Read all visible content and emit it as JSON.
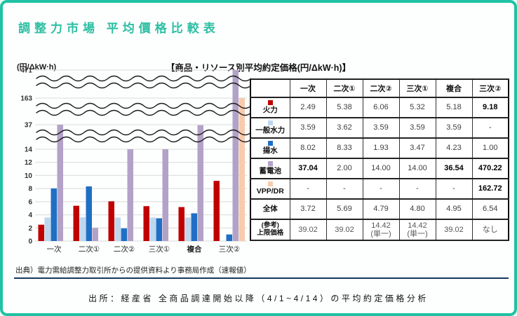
{
  "title": "調整力市場 平均價格比較表",
  "unit_label": "(円/ΔkW·h)",
  "chart_header": "【商品・リソース別平均約定価格(円/ΔkW·h)】",
  "source_note": "出典）電力需給調整力取引所からの提供資料より事務局作成（速報値）",
  "caption": "出所：経産省 全商品調達開始以降（4/1~4/14）の平均約定価格分析",
  "accent_color": "#1fc3a4",
  "chart_data": {
    "type": "bar",
    "title": "【商品・リソース別平均約定価格(円/ΔkW·h)】",
    "ylabel": "(円/ΔkW·h)",
    "categories": [
      "一次",
      "二次①",
      "二次②",
      "三次①",
      "複合",
      "三次②"
    ],
    "category_bold": [
      false,
      false,
      false,
      false,
      true,
      false
    ],
    "series": [
      {
        "name": "火力",
        "color": "#C00000",
        "values": [
          2.49,
          5.38,
          6.06,
          5.32,
          5.18,
          9.18
        ]
      },
      {
        "name": "一般水力",
        "color": "#BDD7EE",
        "values": [
          3.59,
          3.62,
          3.59,
          3.59,
          3.59,
          null
        ]
      },
      {
        "name": "揚水",
        "color": "#1F6FC5",
        "values": [
          8.02,
          8.33,
          1.93,
          3.47,
          4.23,
          1.0
        ]
      },
      {
        "name": "蓄電池",
        "color": "#B3A2C7",
        "values": [
          37.04,
          2.0,
          14.0,
          14.0,
          36.54,
          470.22
        ]
      },
      {
        "name": "VPP/DR",
        "color": "#F8CBAD",
        "values": [
          null,
          null,
          null,
          null,
          null,
          162.72
        ]
      }
    ],
    "y_ticks": [
      0,
      2,
      4,
      6,
      8,
      10,
      12,
      14,
      37,
      163,
      471
    ],
    "axis_break_pairs": 3,
    "grid": true,
    "legend_position": "table-rows"
  },
  "table": {
    "columns": [
      "",
      "一次",
      "二次①",
      "二次②",
      "三次①",
      "複合",
      "三次②"
    ],
    "rows": [
      {
        "label": "火力",
        "legend_color": "#C00000",
        "muted": false,
        "values": [
          "2.49",
          "5.38",
          "6.06",
          "5.32",
          "5.18",
          "9.18"
        ],
        "bold": [
          false,
          false,
          false,
          false,
          false,
          true
        ]
      },
      {
        "label": "一般水力",
        "legend_color": "#BDD7EE",
        "muted": false,
        "values": [
          "3.59",
          "3.62",
          "3.59",
          "3.59",
          "3.59",
          "-"
        ],
        "bold": [
          false,
          false,
          false,
          false,
          false,
          false
        ]
      },
      {
        "label": "揚水",
        "legend_color": "#1F6FC5",
        "muted": false,
        "values": [
          "8.02",
          "8.33",
          "1.93",
          "3.47",
          "4.23",
          "1.00"
        ],
        "bold": [
          false,
          false,
          false,
          false,
          false,
          false
        ]
      },
      {
        "label": "蓄電池",
        "legend_color": "#B3A2C7",
        "muted": false,
        "values": [
          "37.04",
          "2.00",
          "14.00",
          "14.00",
          "36.54",
          "470.22"
        ],
        "bold": [
          true,
          false,
          false,
          false,
          true,
          true
        ]
      },
      {
        "label": "VPP/DR",
        "legend_color": "#F8CBAD",
        "muted": false,
        "values": [
          "-",
          "-",
          "-",
          "-",
          "-",
          "162.72"
        ],
        "bold": [
          false,
          false,
          false,
          false,
          false,
          true
        ]
      },
      {
        "label": "全体",
        "legend_color": null,
        "muted": false,
        "values": [
          "3.72",
          "5.69",
          "4.79",
          "4.80",
          "4.95",
          "6.54"
        ],
        "bold": [
          false,
          false,
          false,
          false,
          false,
          false
        ]
      },
      {
        "label": "(参考)\n上限価格",
        "legend_color": null,
        "muted": true,
        "values": [
          "39.02",
          "39.02",
          "14.42\n(単一)",
          "14.42\n(単一)",
          "39.02",
          "なし"
        ],
        "bold": [
          false,
          false,
          false,
          false,
          false,
          false
        ]
      }
    ]
  }
}
